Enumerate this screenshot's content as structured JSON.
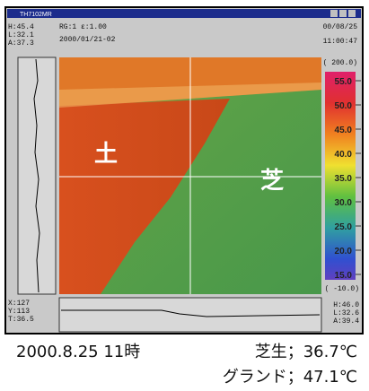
{
  "window": {
    "title": "TH7102MR"
  },
  "readouts": {
    "top_left": [
      "H:45.4",
      "L:32.1",
      "A:37.3"
    ],
    "mode": "RG:1  ε:1.00",
    "file": "2000/01/21-02",
    "date": "00/08/25",
    "time": "11:00:47",
    "bottom_left": [
      "X:127",
      "Y:113",
      "T:36.5"
    ],
    "bottom_right": [
      "H:46.0",
      "L:32.6",
      "A:39.4"
    ]
  },
  "scale": {
    "max": "( 200.0)",
    "labels": [
      "55.0",
      "50.0",
      "45.0",
      "40.0",
      "35.0",
      "30.0",
      "25.0",
      "20.0",
      "15.0"
    ],
    "min": "( -10.0)"
  },
  "image_labels": {
    "soil": "土",
    "grass": "芝"
  },
  "caption": {
    "datetime": "2000.8.25 11時",
    "grass_temp": "芝生；36.7℃",
    "ground_temp": "グランド；47.1℃"
  }
}
